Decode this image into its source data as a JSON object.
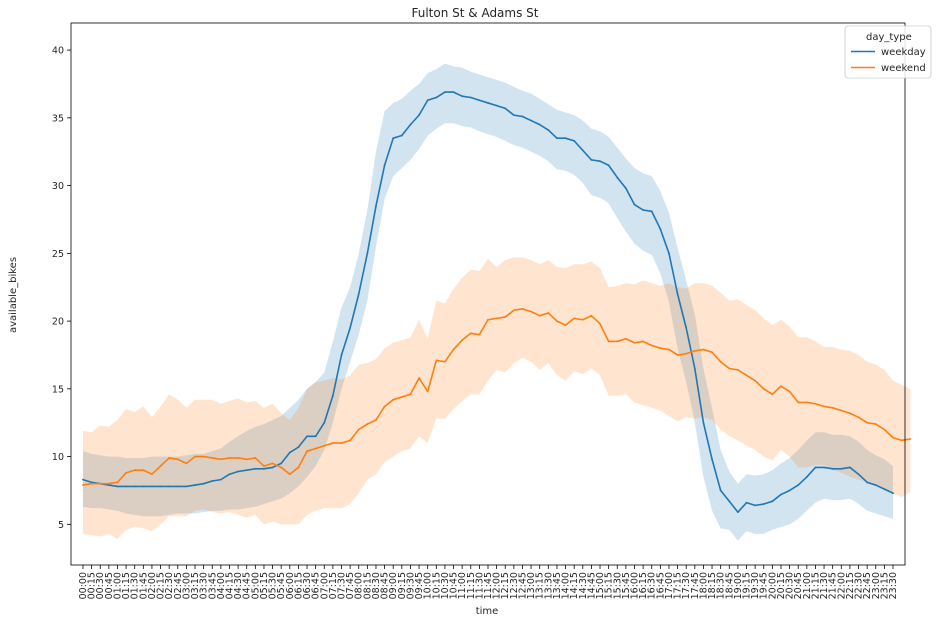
{
  "chart_data": {
    "type": "line",
    "title": "Fulton St & Adams St",
    "xlabel": "time",
    "ylabel": "available_bikes",
    "ylim": [
      2,
      42
    ],
    "yticks": [
      5,
      10,
      15,
      20,
      25,
      30,
      35,
      40
    ],
    "grid": false,
    "legend": {
      "title": "day_type",
      "placement": "top-right"
    },
    "colors": {
      "weekday": "#1f77b4",
      "weekend": "#ff7f0e"
    },
    "series": [
      {
        "name": "weekday",
        "values": [
          8.3,
          8.1,
          8.0,
          7.9,
          7.8,
          7.8,
          7.8,
          7.8,
          7.8,
          7.8,
          7.8,
          7.8,
          7.8,
          7.9,
          8.0,
          8.2,
          8.3,
          8.7,
          8.9,
          9.0,
          9.1,
          9.1,
          9.2,
          9.5,
          10.3,
          10.7,
          11.5,
          11.5,
          12.5,
          14.5,
          17.5,
          19.5,
          22.0,
          25.0,
          28.5,
          31.5,
          33.5,
          33.7,
          34.5,
          35.2,
          36.3,
          36.5,
          36.9,
          36.9,
          36.6,
          36.5,
          36.3,
          36.1,
          35.9,
          35.7,
          35.2,
          35.1,
          34.8,
          34.5,
          34.1,
          33.5,
          33.5,
          33.3,
          32.6,
          31.9,
          31.8,
          31.5,
          30.6,
          29.8,
          28.6,
          28.2,
          28.1,
          26.8,
          25.0,
          22.0,
          19.5,
          16.5,
          12.5,
          9.8,
          7.5,
          6.7,
          5.9,
          6.6,
          6.4,
          6.5,
          6.7,
          7.2,
          7.5,
          7.9,
          8.5,
          9.2,
          9.2,
          9.1,
          9.1,
          9.2,
          8.7,
          8.1,
          7.9,
          7.6,
          7.3
        ],
        "ci_lower": [
          6.3,
          6.2,
          6.2,
          6.1,
          6.0,
          5.8,
          5.7,
          5.6,
          5.6,
          5.6,
          5.7,
          5.8,
          5.8,
          5.8,
          5.9,
          6.0,
          6.0,
          6.1,
          6.1,
          6.2,
          6.3,
          6.5,
          6.7,
          6.9,
          7.3,
          7.8,
          8.5,
          9.3,
          10.5,
          12.5,
          15.0,
          17.0,
          19.0,
          21.5,
          25.5,
          29.0,
          30.7,
          31.3,
          31.9,
          32.7,
          33.7,
          34.2,
          34.6,
          34.6,
          34.4,
          34.3,
          34.0,
          33.8,
          33.6,
          33.3,
          33.0,
          32.8,
          32.5,
          32.2,
          31.8,
          31.2,
          31.1,
          30.8,
          30.2,
          29.3,
          29.1,
          28.7,
          27.6,
          26.6,
          25.7,
          25.2,
          24.9,
          23.5,
          21.4,
          18.0,
          15.5,
          12.5,
          8.5,
          6.0,
          4.7,
          4.6,
          3.8,
          4.5,
          4.3,
          4.3,
          4.6,
          4.8,
          5.0,
          5.4,
          6.0,
          6.6,
          6.9,
          6.8,
          6.8,
          6.9,
          6.5,
          6.0,
          5.8,
          5.6,
          5.4
        ],
        "ci_upper": [
          10.4,
          10.2,
          10.1,
          10.0,
          10.0,
          9.9,
          9.9,
          9.9,
          10.0,
          10.0,
          10.0,
          10.0,
          10.1,
          10.2,
          10.2,
          10.4,
          10.6,
          11.1,
          11.5,
          11.9,
          12.2,
          12.4,
          12.7,
          13.0,
          13.6,
          14.2,
          15.0,
          15.5,
          16.2,
          18.5,
          21.0,
          22.5,
          25.0,
          28.2,
          32.5,
          35.5,
          36.1,
          36.4,
          37.0,
          37.5,
          38.3,
          38.6,
          39.0,
          38.8,
          38.7,
          38.4,
          38.2,
          38.0,
          37.8,
          37.6,
          37.3,
          37.0,
          36.8,
          36.4,
          36.0,
          35.6,
          35.4,
          35.2,
          34.8,
          34.2,
          34.0,
          33.6,
          32.8,
          32.0,
          31.3,
          30.9,
          30.7,
          29.6,
          28.0,
          25.4,
          23.0,
          20.5,
          16.5,
          13.6,
          10.5,
          8.9,
          8.0,
          8.7,
          8.6,
          8.7,
          9.0,
          9.5,
          9.9,
          10.5,
          11.2,
          11.8,
          11.8,
          11.6,
          11.6,
          11.5,
          11.1,
          10.5,
          10.1,
          9.8,
          9.3
        ]
      },
      {
        "name": "weekend",
        "values": [
          7.9,
          8.0,
          8.0,
          8.0,
          8.1,
          8.8,
          9.0,
          9.0,
          8.7,
          9.3,
          9.9,
          9.8,
          9.5,
          10.0,
          10.0,
          9.9,
          9.8,
          9.9,
          9.9,
          9.8,
          9.9,
          9.3,
          9.5,
          9.2,
          8.7,
          9.2,
          10.4,
          10.6,
          10.8,
          11.0,
          11.0,
          11.2,
          12.0,
          12.4,
          12.7,
          13.7,
          14.2,
          14.4,
          14.6,
          15.8,
          14.8,
          17.1,
          17.0,
          17.9,
          18.6,
          19.1,
          19.0,
          20.1,
          20.2,
          20.3,
          20.8,
          20.9,
          20.7,
          20.4,
          20.6,
          20.0,
          19.7,
          20.2,
          20.1,
          20.4,
          19.8,
          18.5,
          18.5,
          18.7,
          18.4,
          18.5,
          18.2,
          18.0,
          17.9,
          17.5,
          17.6,
          17.8,
          17.9,
          17.7,
          17.0,
          16.5,
          16.4,
          16.0,
          15.6,
          15.0,
          14.6,
          15.2,
          14.8,
          14.0,
          14.0,
          13.9,
          13.7,
          13.6,
          13.4,
          13.2,
          12.9,
          12.5,
          12.4,
          12.0,
          11.4,
          11.2,
          11.3
        ],
        "ci_lower": [
          4.3,
          4.2,
          4.1,
          4.3,
          3.9,
          4.6,
          4.8,
          4.7,
          4.5,
          5.0,
          5.6,
          5.6,
          5.6,
          6.0,
          6.1,
          5.9,
          5.8,
          5.9,
          5.7,
          5.5,
          5.7,
          5.0,
          5.2,
          5.0,
          5.0,
          5.0,
          5.7,
          6.0,
          6.2,
          6.2,
          6.2,
          6.5,
          7.3,
          8.3,
          8.7,
          9.6,
          10.0,
          10.4,
          10.6,
          11.5,
          11.0,
          12.8,
          12.8,
          13.5,
          14.1,
          14.6,
          14.6,
          15.6,
          16.4,
          16.2,
          16.9,
          17.3,
          17.0,
          16.4,
          16.9,
          16.0,
          15.6,
          16.3,
          16.1,
          16.5,
          16.0,
          14.5,
          14.5,
          14.6,
          14.0,
          13.8,
          13.6,
          13.4,
          13.0,
          12.6,
          12.9,
          12.8,
          12.9,
          12.7,
          12.0,
          11.5,
          11.2,
          10.8,
          10.5,
          10.0,
          9.7,
          10.5,
          10.0,
          9.2,
          9.2,
          9.4,
          9.4,
          9.0,
          8.8,
          8.5,
          8.3,
          8.1,
          8.0,
          7.6,
          7.3,
          7.0,
          7.4
        ],
        "ci_upper": [
          11.9,
          11.8,
          12.3,
          12.2,
          12.7,
          13.5,
          13.3,
          13.7,
          12.9,
          13.7,
          14.6,
          14.2,
          13.6,
          14.2,
          14.2,
          14.2,
          13.9,
          14.1,
          14.3,
          14.0,
          14.1,
          13.6,
          13.9,
          13.2,
          12.7,
          13.6,
          15.0,
          15.5,
          15.6,
          15.8,
          15.7,
          16.0,
          16.8,
          16.9,
          17.2,
          18.0,
          18.4,
          18.6,
          18.8,
          20.1,
          18.7,
          21.5,
          21.3,
          22.4,
          23.2,
          23.8,
          23.7,
          24.6,
          24.0,
          24.5,
          24.7,
          24.7,
          24.5,
          24.2,
          24.5,
          24.0,
          23.9,
          24.2,
          24.2,
          24.4,
          23.9,
          22.5,
          22.6,
          22.8,
          22.7,
          23.0,
          22.8,
          22.6,
          22.8,
          22.5,
          22.4,
          22.8,
          22.8,
          22.6,
          22.1,
          21.5,
          21.6,
          21.2,
          20.8,
          20.2,
          19.7,
          20.1,
          19.6,
          18.8,
          18.8,
          18.5,
          18.1,
          18.1,
          17.9,
          17.8,
          17.5,
          17.0,
          16.8,
          16.4,
          15.6,
          15.3,
          15.0
        ]
      }
    ]
  }
}
